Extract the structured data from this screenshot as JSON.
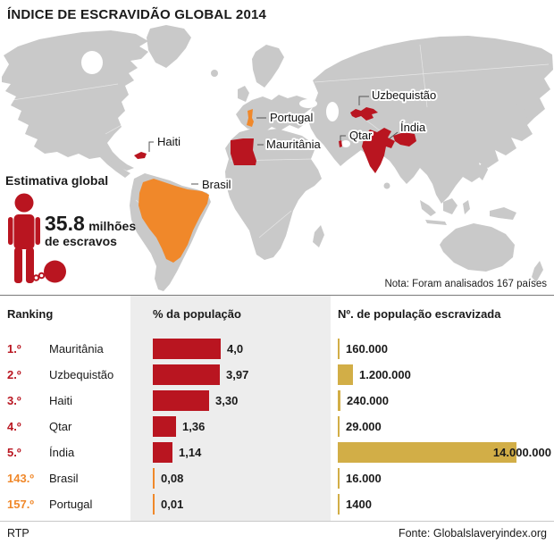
{
  "title": "ÍNDICE DE ESCRAVIDÃO GLOBAL 2014",
  "map": {
    "note": "Nota: Foram analisados 167 países",
    "labels": {
      "haiti": "Haiti",
      "portugal": "Portugal",
      "mauritania": "Mauritânia",
      "uzbequistao": "Uzbequistão",
      "india": "Índia",
      "qtar": "Qtar",
      "brasil": "Brasil"
    }
  },
  "estimate": {
    "heading": "Estimativa global",
    "number": "35.8",
    "unit": "milhões",
    "line2": "de escravos"
  },
  "table": {
    "headers": {
      "ranking": "Ranking",
      "percent": "% da população",
      "number": "Nº. de população escravizada"
    },
    "rows": [
      {
        "rank": "1.º",
        "country": "Mauritânia",
        "percent_label": "4,0",
        "percent": 4.0,
        "number_label": "160.000",
        "number": 160000,
        "tier": "top"
      },
      {
        "rank": "2.º",
        "country": "Uzbequistão",
        "percent_label": "3,97",
        "percent": 3.97,
        "number_label": "1.200.000",
        "number": 1200000,
        "tier": "top"
      },
      {
        "rank": "3.º",
        "country": "Haiti",
        "percent_label": "3,30",
        "percent": 3.3,
        "number_label": "240.000",
        "number": 240000,
        "tier": "top"
      },
      {
        "rank": "4.º",
        "country": "Qtar",
        "percent_label": "1,36",
        "percent": 1.36,
        "number_label": "29.000",
        "number": 29000,
        "tier": "top"
      },
      {
        "rank": "5.º",
        "country": "Índia",
        "percent_label": "1,14",
        "percent": 1.14,
        "number_label": "14.000.000",
        "number": 14000000,
        "tier": "top"
      },
      {
        "rank": "143.º",
        "country": "Brasil",
        "percent_label": "0,08",
        "percent": 0.08,
        "number_label": "16.000",
        "number": 16000,
        "tier": "low"
      },
      {
        "rank": "157.º",
        "country": "Portugal",
        "percent_label": "0,01",
        "percent": 0.01,
        "number_label": "1400",
        "number": 1400,
        "tier": "low"
      }
    ]
  },
  "footer": {
    "left": "RTP",
    "right": "Fonte: Globalslaveryindex.org"
  },
  "colors": {
    "red": "#b91520",
    "orange": "#f0882a",
    "gold": "#d2ae47",
    "map_gray": "#c9c9c9",
    "band_gray": "#ededed"
  },
  "chart_data": {
    "type": "bar",
    "title": "Índice de Escravidão Global 2014",
    "categories": [
      "Mauritânia",
      "Uzbequistão",
      "Haiti",
      "Qtar",
      "Índia",
      "Brasil",
      "Portugal"
    ],
    "ranks": [
      1,
      2,
      3,
      4,
      5,
      143,
      157
    ],
    "series": [
      {
        "name": "% da população",
        "values": [
          4.0,
          3.97,
          3.3,
          1.36,
          1.14,
          0.08,
          0.01
        ]
      },
      {
        "name": "Nº. de população escravizada",
        "values": [
          160000,
          1200000,
          240000,
          29000,
          14000000,
          16000,
          1400
        ]
      }
    ],
    "annotations": [
      "Estimativa global: 35.8 milhões de escravos",
      "Nota: Foram analisados 167 países"
    ],
    "map_highlights": {
      "red": [
        "Mauritânia",
        "Uzbequistão",
        "Haiti",
        "Qtar",
        "Índia"
      ],
      "orange": [
        "Brasil",
        "Portugal"
      ]
    },
    "legend_position": "none",
    "grid": false
  }
}
